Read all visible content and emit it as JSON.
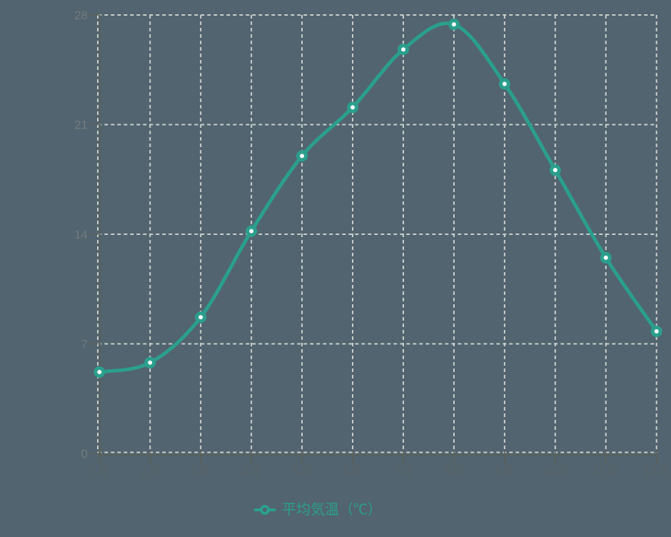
{
  "chart_data": {
    "type": "line",
    "title": "",
    "categories": [
      "1月",
      "2月",
      "3月",
      "4月",
      "5月",
      "6月",
      "7月",
      "8月",
      "9月",
      "10月",
      "11月",
      "12月"
    ],
    "series": [
      {
        "name": "平均気温（℃）",
        "values": [
          5.2,
          5.8,
          8.7,
          14.2,
          19.0,
          22.1,
          25.8,
          27.4,
          23.6,
          18.1,
          12.5,
          7.8
        ]
      }
    ],
    "xlabel": "",
    "ylabel": "",
    "ylim": [
      0,
      28
    ],
    "yticks": [
      0,
      7,
      14,
      21,
      28
    ],
    "grid": "dashed",
    "smooth": true,
    "marker": "circle-with-white-center",
    "legend_position": "bottom-center"
  },
  "legend": {
    "label": "平均気温（℃）"
  },
  "colors": {
    "background": "#51646f",
    "series": "#2b9f8d",
    "gridline": "#c9cfcb",
    "axis": "#5c6058",
    "y_tick_label": "#757b7e",
    "x_tick_label": "#5a6468",
    "marker_center": "#ffffff"
  }
}
